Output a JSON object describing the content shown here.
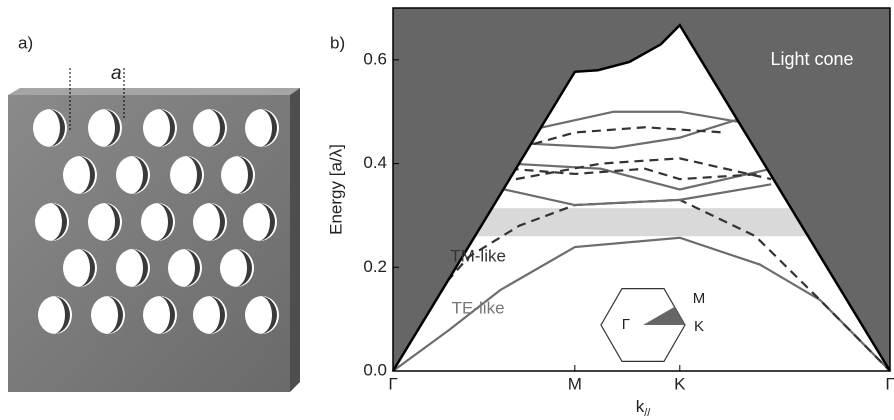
{
  "panel_a": {
    "panel_label": "a)",
    "lattice_label": "a"
  },
  "chart_data": {
    "type": "line",
    "panel_label": "b)",
    "ylabel": "Energy [a/λ]",
    "xlabel": {
      "main": "k",
      "sub": "//"
    },
    "xlim": [
      0,
      1.577
    ],
    "ylim": [
      0,
      0.7
    ],
    "xticks": [
      {
        "value": 0,
        "label": "Γ"
      },
      {
        "value": 0.577,
        "label": "M"
      },
      {
        "value": 0.91,
        "label": "K"
      },
      {
        "value": 1.577,
        "label": "Γ"
      }
    ],
    "yticks": [
      {
        "value": 0,
        "label": "0.0"
      },
      0.2,
      0.4,
      0.6
    ],
    "light_cone": {
      "label": "Light cone",
      "color": "#666666",
      "x": [
        0,
        0.577,
        0.65,
        0.75,
        0.85,
        0.91,
        1.577
      ],
      "values": [
        0,
        0.577,
        0.58,
        0.596,
        0.63,
        0.667,
        0
      ]
    },
    "band_gap": {
      "color": "#d9d9d9",
      "range": [
        0.26,
        0.314
      ]
    },
    "annotations": [
      {
        "text": "TM-like",
        "x": 0.27,
        "y": 0.22,
        "color": "#333333"
      },
      {
        "text": "TE-like",
        "x": 0.27,
        "y": 0.12,
        "color": "#777777"
      }
    ],
    "inset_labels": [
      "Γ",
      "M",
      "K"
    ],
    "series": [
      {
        "color": "#6d6d6d",
        "dash": false,
        "x": [
          0,
          0.18,
          0.34,
          0.577,
          0.91,
          1.165,
          1.355,
          1.577
        ],
        "values": [
          0,
          0.08,
          0.156,
          0.239,
          0.257,
          0.205,
          0.137,
          0
        ]
      },
      {
        "color": "#333333",
        "dash": true,
        "x": [
          0,
          0.12,
          0.24,
          0.4,
          0.577,
          0.91,
          1.15,
          1.35,
          1.577
        ],
        "values": [
          0,
          0.137,
          0.22,
          0.28,
          0.32,
          0.33,
          0.26,
          0.14,
          0
        ]
      },
      {
        "color": "#6d6d6d",
        "dash": false,
        "x": [
          0.28,
          0.577,
          0.91,
          1.2
        ],
        "values": [
          0.36,
          0.32,
          0.33,
          0.36
        ]
      },
      {
        "color": "#6d6d6d",
        "dash": false,
        "x": [
          0.37,
          0.66,
          0.91,
          1.2
        ],
        "values": [
          0.4,
          0.39,
          0.35,
          0.39
        ]
      },
      {
        "color": "#6d6d6d",
        "dash": false,
        "x": [
          0.4,
          0.7,
          0.91,
          1.1
        ],
        "values": [
          0.46,
          0.5,
          0.5,
          0.48
        ]
      },
      {
        "color": "#6d6d6d",
        "dash": false,
        "x": [
          0.38,
          0.7,
          0.91,
          1.12
        ],
        "values": [
          0.44,
          0.43,
          0.45,
          0.49
        ]
      },
      {
        "color": "#333333",
        "dash": true,
        "x": [
          0.4,
          0.577,
          0.8,
          1.05
        ],
        "values": [
          0.43,
          0.46,
          0.47,
          0.46
        ]
      },
      {
        "color": "#333333",
        "dash": true,
        "x": [
          0.37,
          0.577,
          0.8,
          0.91,
          1.17
        ],
        "values": [
          0.39,
          0.38,
          0.39,
          0.37,
          0.38
        ]
      },
      {
        "color": "#333333",
        "dash": true,
        "x": [
          0.39,
          0.66,
          0.91,
          1.2
        ],
        "values": [
          0.37,
          0.4,
          0.41,
          0.37
        ]
      }
    ]
  }
}
